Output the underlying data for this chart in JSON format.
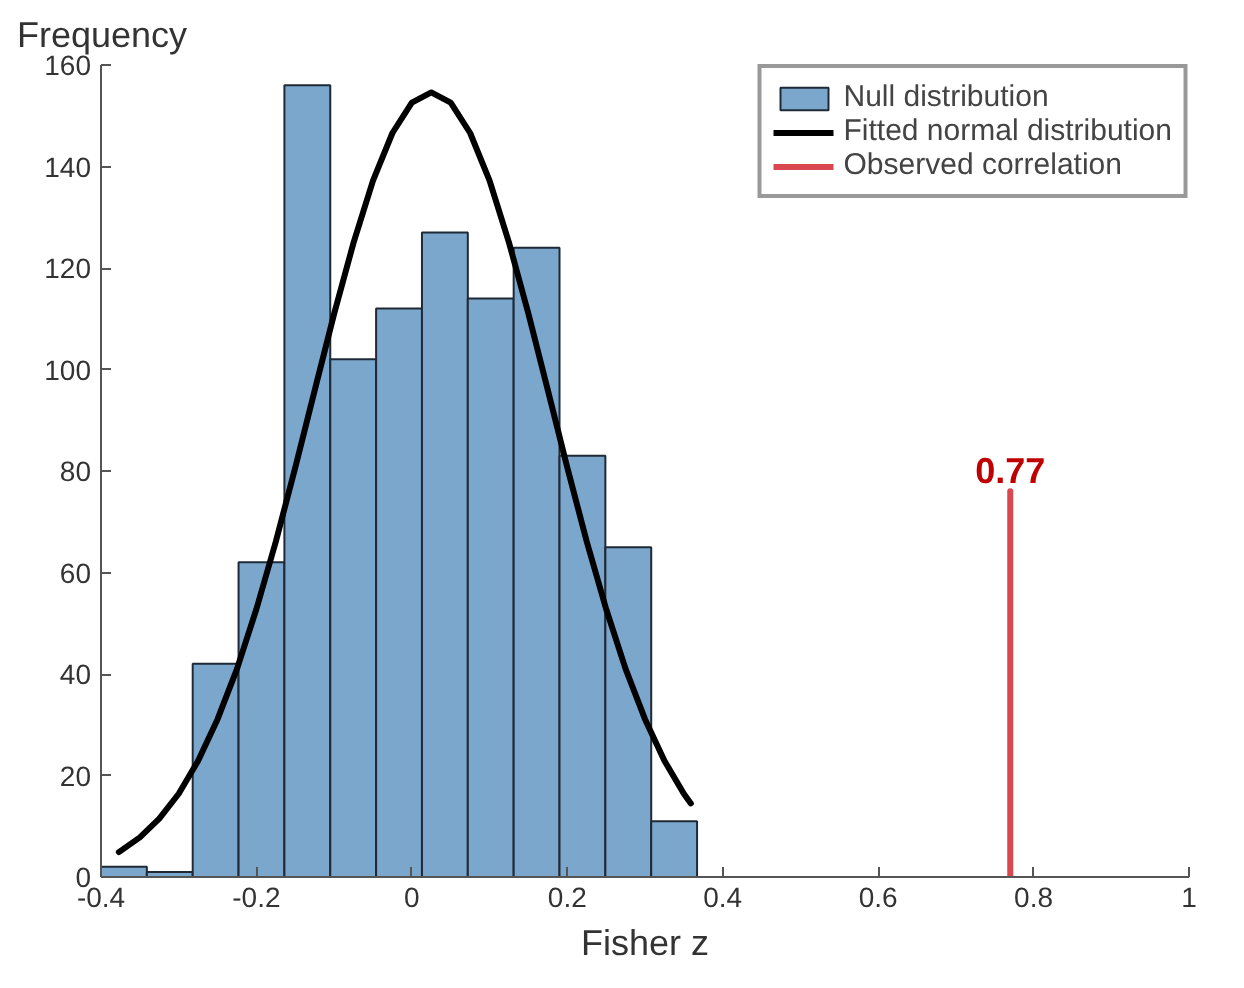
{
  "chart_data": {
    "type": "histogram",
    "xlabel": "Fisher z",
    "ylabel": "Frequency",
    "bins": [
      -0.4,
      -0.341,
      -0.282,
      -0.223,
      -0.164,
      -0.105,
      -0.046,
      0.013,
      0.072,
      0.131,
      0.19,
      0.249,
      0.308,
      0.367
    ],
    "series": [
      {
        "name": "Null distribution",
        "color": "#7ba7cc",
        "values": [
          2,
          1,
          42,
          62,
          156,
          102,
          112,
          127,
          114,
          124,
          83,
          65,
          11
        ]
      },
      {
        "type": "line",
        "name": "Fitted normal distribution",
        "color": "#000000",
        "x": [
          -0.377,
          -0.35,
          -0.325,
          -0.3,
          -0.275,
          -0.25,
          -0.225,
          -0.2,
          -0.175,
          -0.15,
          -0.125,
          -0.1,
          -0.075,
          -0.05,
          -0.025,
          0,
          0.025,
          0.05,
          0.075,
          0.1,
          0.125,
          0.15,
          0.175,
          0.2,
          0.225,
          0.25,
          0.275,
          0.3,
          0.325,
          0.35,
          0.359
        ],
        "values": [
          4.9,
          7.8,
          11.5,
          16.4,
          22.9,
          31.1,
          41.0,
          52.8,
          66.1,
          80.7,
          95.9,
          111.0,
          125.0,
          137.2,
          146.6,
          152.6,
          154.6,
          152.6,
          146.6,
          137.2,
          125.0,
          111.0,
          95.9,
          80.7,
          66.1,
          52.8,
          41.0,
          31.1,
          22.9,
          16.4,
          14.5
        ]
      },
      {
        "type": "line",
        "name": "Observed correlation",
        "color": "#d9474f",
        "x": [
          0.77,
          0.77
        ],
        "values": [
          0,
          76
        ]
      }
    ],
    "annotations": [
      {
        "text": "0.77",
        "x": 0.77,
        "y": 76
      }
    ],
    "xlim": [
      -0.4,
      1
    ],
    "ylim": [
      0,
      160
    ],
    "xticks": [
      -0.4,
      -0.2,
      0,
      0.2,
      0.4,
      0.6,
      0.8,
      1
    ],
    "yticks": [
      0,
      20,
      40,
      60,
      80,
      100,
      120,
      140,
      160
    ],
    "grid": false,
    "legend": "top right"
  }
}
